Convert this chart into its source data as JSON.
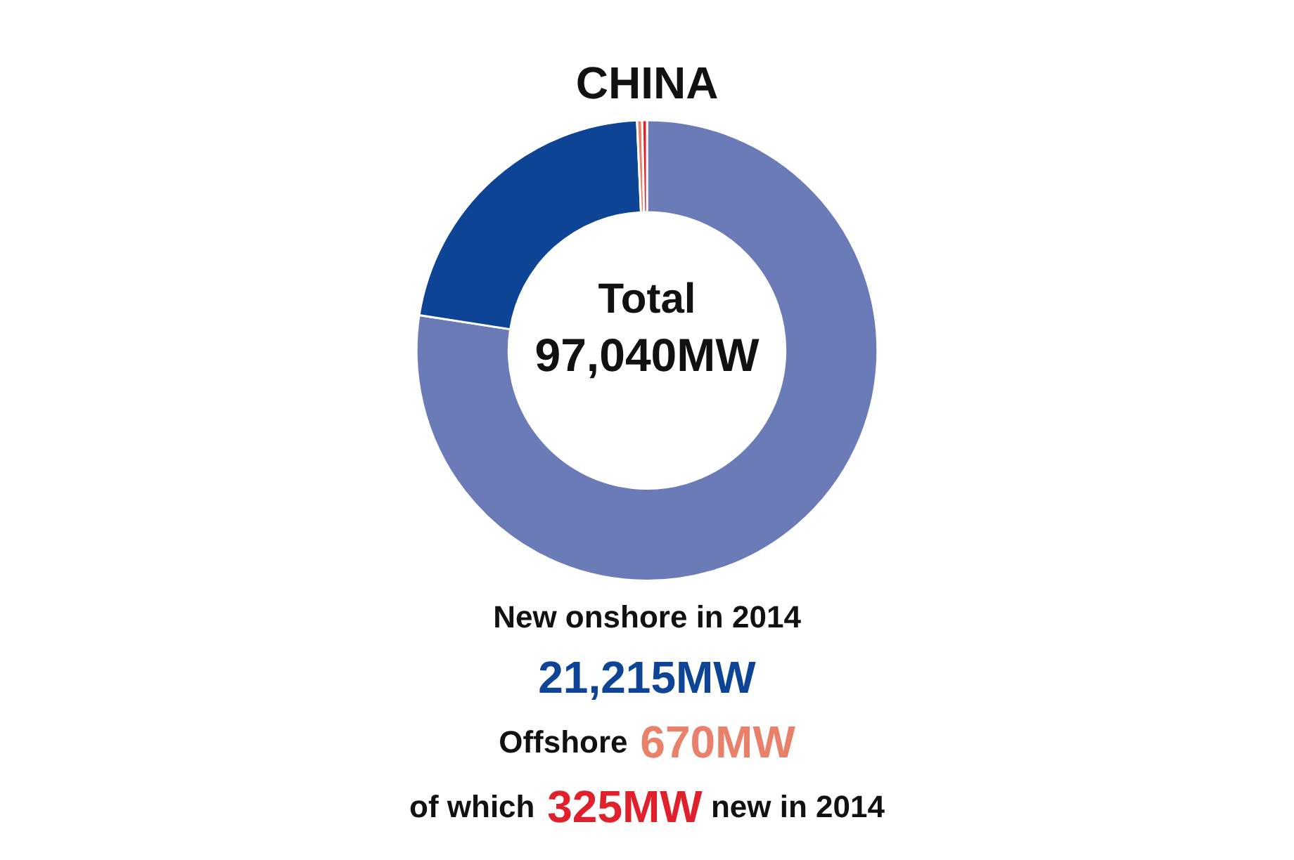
{
  "chart_data": {
    "type": "donut",
    "title": "CHINA",
    "categories": [
      null,
      null,
      null,
      null
    ],
    "values": [
      77.447,
      21.862,
      0.356,
      0.335
    ],
    "colors": [
      "#6b7bb8",
      "#0d4496",
      "#e8806a",
      "#e0202a"
    ],
    "annotations": [
      "Total",
      "97,040MW",
      "New onshore in 2014",
      "21,215MW",
      "Offshore",
      "670MW",
      "of which",
      "325MW",
      "new in 2014"
    ]
  }
}
